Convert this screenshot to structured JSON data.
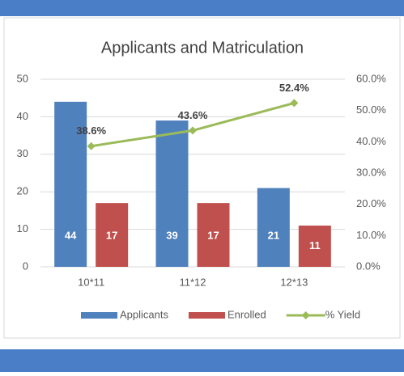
{
  "chart_data": {
    "type": "bar",
    "title": "Applicants and Matriculation",
    "categories": [
      "10*11",
      "11*12",
      "12*13"
    ],
    "series": [
      {
        "name": "Applicants",
        "color": "#4f81bd",
        "values": [
          44,
          39,
          21
        ]
      },
      {
        "name": "Enrolled",
        "color": "#c0504d",
        "values": [
          17,
          17,
          11
        ]
      },
      {
        "name": "% Yield",
        "color": "#9bbb59",
        "type": "line",
        "axis": "y2",
        "values": [
          38.6,
          43.6,
          52.4
        ],
        "value_labels": [
          "38.6%",
          "43.6%",
          "52.4%"
        ]
      }
    ],
    "ylim": [
      0,
      50
    ],
    "yticks": [
      0,
      10,
      20,
      30,
      40,
      50
    ],
    "y2lim": [
      0,
      60
    ],
    "y2ticks": [
      {
        "value": 0,
        "label": "0.0%"
      },
      {
        "value": 10,
        "label": "10.0%"
      },
      {
        "value": 20,
        "label": "20.0%"
      },
      {
        "value": 30,
        "label": "30.0%"
      },
      {
        "value": 40,
        "label": "40.0%"
      },
      {
        "value": 50,
        "label": "50.0%"
      },
      {
        "value": 60,
        "label": "60.0%"
      }
    ],
    "grid": true,
    "legend": "bottom"
  }
}
